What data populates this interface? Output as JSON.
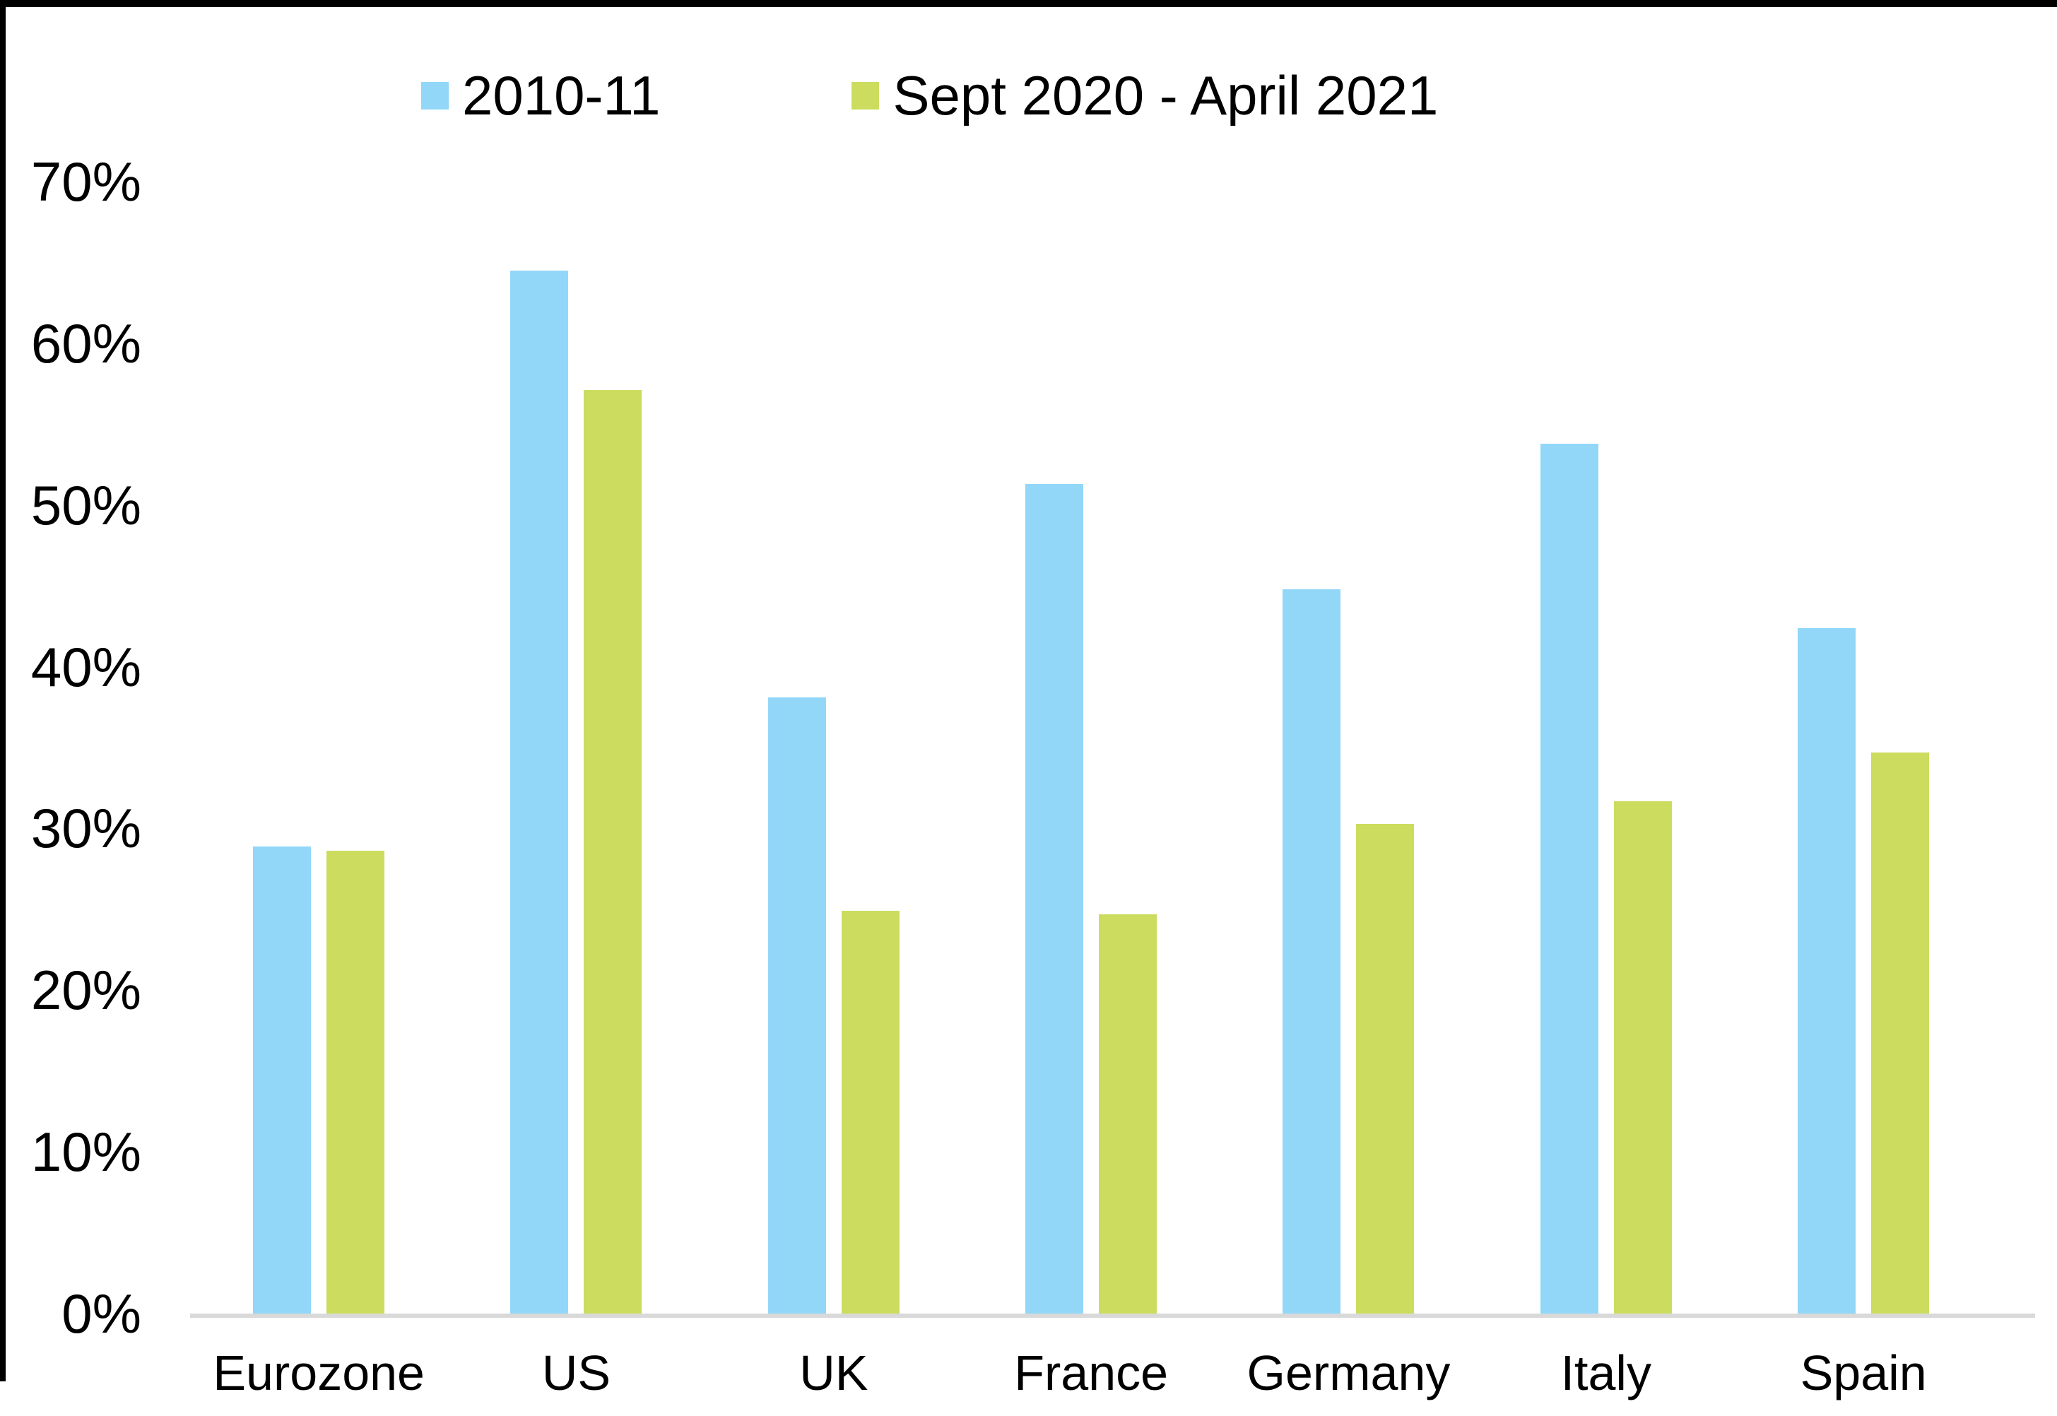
{
  "chart_data": {
    "type": "bar",
    "categories": [
      "Eurozone",
      "US",
      "UK",
      "France",
      "Germany",
      "Italy",
      "Spain"
    ],
    "series": [
      {
        "name": "2010-11",
        "color": "#92D7F8",
        "values": [
          28.9,
          64.5,
          38.1,
          51.3,
          44.8,
          53.8,
          42.4
        ]
      },
      {
        "name": "Sept 2020 - April 2021",
        "color": "#CCDC5F",
        "values": [
          28.6,
          57.1,
          24.9,
          24.7,
          30.3,
          31.7,
          34.7
        ]
      }
    ],
    "title": "",
    "xlabel": "",
    "ylabel": "",
    "ylim": [
      0,
      70
    ],
    "y_tick_step": 10,
    "y_tick_labels": [
      "0%",
      "10%",
      "20%",
      "30%",
      "40%",
      "50%",
      "60%",
      "70%"
    ],
    "grid": false,
    "legend_position": "top",
    "axis_line_color": "#D9D9D9",
    "text_color": "#000000"
  }
}
